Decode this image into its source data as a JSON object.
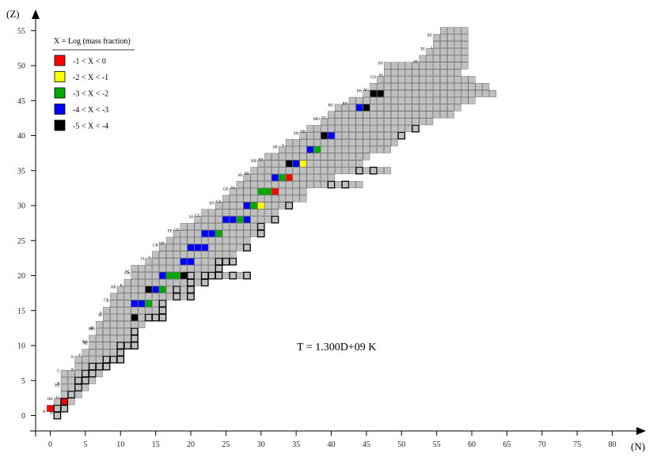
{
  "chart_data": {
    "type": "heatmap",
    "title": "",
    "xlabel": "(N)",
    "ylabel": "(Z)",
    "xlim": [
      -2,
      82
    ],
    "ylim": [
      -1,
      55
    ],
    "x_ticks": [
      0,
      5,
      10,
      15,
      20,
      25,
      30,
      35,
      40,
      45,
      50,
      55,
      60,
      65,
      70,
      75,
      80
    ],
    "y_ticks": [
      0,
      5,
      10,
      15,
      20,
      25,
      30,
      35,
      40,
      45,
      50,
      55
    ],
    "annotation": "T = 1.300D+09 K",
    "legend": {
      "title": "X = Log (mass fraction)",
      "entries": [
        {
          "label": "-1 < X < 0",
          "color": "#ff0000"
        },
        {
          "label": "-2 < X < -1",
          "color": "#ffff00"
        },
        {
          "label": "-3 < X < -2",
          "color": "#00aa00"
        },
        {
          "label": "-4 < X < -3",
          "color": "#0000ff"
        },
        {
          "label": "-5 < X < -4",
          "color": "#000000"
        }
      ]
    },
    "colors": {
      "network": "#c0c0c0",
      "stable_border": "#000000"
    },
    "rows": [
      {
        "z": 0,
        "n_min": 1,
        "n_max": 1
      },
      {
        "z": 1,
        "n_min": 0,
        "n_max": 2
      },
      {
        "z": 2,
        "n_min": 1,
        "n_max": 3
      },
      {
        "z": 3,
        "n_min": 2,
        "n_max": 4
      },
      {
        "z": 4,
        "n_min": 2,
        "n_max": 5
      },
      {
        "z": 5,
        "n_min": 2,
        "n_max": 6
      },
      {
        "z": 6,
        "n_min": 2,
        "n_max": 7
      },
      {
        "z": 7,
        "n_min": 4,
        "n_max": 8
      },
      {
        "z": 8,
        "n_min": 4,
        "n_max": 10
      },
      {
        "z": 9,
        "n_min": 5,
        "n_max": 10
      },
      {
        "z": 10,
        "n_min": 6,
        "n_max": 12
      },
      {
        "z": 11,
        "n_min": 6,
        "n_max": 12
      },
      {
        "z": 12,
        "n_min": 7,
        "n_max": 12
      },
      {
        "z": 13,
        "n_min": 7,
        "n_max": 13
      },
      {
        "z": 14,
        "n_min": 8,
        "n_max": 16
      },
      {
        "z": 15,
        "n_min": 8,
        "n_max": 16
      },
      {
        "z": 16,
        "n_min": 9,
        "n_max": 16
      },
      {
        "z": 17,
        "n_min": 9,
        "n_max": 20
      },
      {
        "z": 18,
        "n_min": 10,
        "n_max": 20
      },
      {
        "z": 19,
        "n_min": 11,
        "n_max": 22
      },
      {
        "z": 20,
        "n_min": 12,
        "n_max": 28
      },
      {
        "z": 21,
        "n_min": 12,
        "n_max": 24
      },
      {
        "z": 22,
        "n_min": 14,
        "n_max": 26
      },
      {
        "z": 23,
        "n_min": 15,
        "n_max": 26
      },
      {
        "z": 24,
        "n_min": 16,
        "n_max": 28
      },
      {
        "z": 25,
        "n_min": 17,
        "n_max": 28
      },
      {
        "z": 26,
        "n_min": 18,
        "n_max": 30
      },
      {
        "z": 27,
        "n_min": 19,
        "n_max": 30
      },
      {
        "z": 28,
        "n_min": 21,
        "n_max": 32
      },
      {
        "z": 29,
        "n_min": 22,
        "n_max": 32
      },
      {
        "z": 30,
        "n_min": 24,
        "n_max": 34
      },
      {
        "z": 31,
        "n_min": 25,
        "n_max": 36
      },
      {
        "z": 32,
        "n_min": 26,
        "n_max": 36
      },
      {
        "z": 33,
        "n_min": 27,
        "n_max": 44
      },
      {
        "z": 34,
        "n_min": 28,
        "n_max": 40
      },
      {
        "z": 35,
        "n_min": 29,
        "n_max": 48
      },
      {
        "z": 36,
        "n_min": 30,
        "n_max": 44
      },
      {
        "z": 37,
        "n_min": 31,
        "n_max": 45
      },
      {
        "z": 38,
        "n_min": 33,
        "n_max": 48
      },
      {
        "z": 39,
        "n_min": 34,
        "n_max": 49
      },
      {
        "z": 40,
        "n_min": 36,
        "n_max": 50
      },
      {
        "z": 41,
        "n_min": 37,
        "n_max": 52
      },
      {
        "z": 42,
        "n_min": 39,
        "n_max": 54
      },
      {
        "z": 43,
        "n_min": 40,
        "n_max": 57
      },
      {
        "z": 44,
        "n_min": 41,
        "n_max": 58
      },
      {
        "z": 45,
        "n_min": 43,
        "n_max": 60
      },
      {
        "z": 46,
        "n_min": 45,
        "n_max": 63
      },
      {
        "z": 47,
        "n_min": 46,
        "n_max": 62
      },
      {
        "z": 48,
        "n_min": 47,
        "n_max": 60
      },
      {
        "z": 49,
        "n_min": 48,
        "n_max": 58
      },
      {
        "z": 50,
        "n_min": 48,
        "n_max": 59
      },
      {
        "z": 51,
        "n_min": 53,
        "n_max": 59
      },
      {
        "z": 52,
        "n_min": 54,
        "n_max": 59
      },
      {
        "z": 53,
        "n_min": 55,
        "n_max": 59
      },
      {
        "z": 54,
        "n_min": 55,
        "n_max": 59
      },
      {
        "z": 55,
        "n_min": 56,
        "n_max": 59
      }
    ],
    "stable_cells": [
      [
        1,
        0
      ],
      [
        1,
        1
      ],
      [
        2,
        1
      ],
      [
        2,
        2
      ],
      [
        3,
        3
      ],
      [
        4,
        4
      ],
      [
        4,
        5
      ],
      [
        5,
        5
      ],
      [
        5,
        6
      ],
      [
        6,
        6
      ],
      [
        6,
        7
      ],
      [
        7,
        7
      ],
      [
        8,
        7
      ],
      [
        8,
        8
      ],
      [
        9,
        8
      ],
      [
        10,
        8
      ],
      [
        10,
        9
      ],
      [
        10,
        10
      ],
      [
        11,
        10
      ],
      [
        12,
        10
      ],
      [
        12,
        11
      ],
      [
        12,
        12
      ],
      [
        13,
        12
      ],
      [
        14,
        12
      ],
      [
        14,
        13
      ],
      [
        14,
        14
      ],
      [
        15,
        14
      ],
      [
        16,
        14
      ],
      [
        16,
        15
      ],
      [
        16,
        16
      ],
      [
        17,
        16
      ],
      [
        18,
        16
      ],
      [
        18,
        17
      ],
      [
        20,
        17
      ],
      [
        18,
        18
      ],
      [
        20,
        18
      ],
      [
        22,
        18
      ],
      [
        20,
        19
      ],
      [
        22,
        19
      ],
      [
        20,
        20
      ],
      [
        22,
        20
      ],
      [
        23,
        20
      ],
      [
        24,
        20
      ],
      [
        26,
        20
      ],
      [
        28,
        20
      ],
      [
        24,
        21
      ],
      [
        24,
        22
      ],
      [
        25,
        22
      ],
      [
        26,
        22
      ],
      [
        27,
        22
      ],
      [
        28,
        22
      ],
      [
        28,
        23
      ],
      [
        28,
        24
      ],
      [
        29,
        24
      ],
      [
        30,
        24
      ],
      [
        30,
        25
      ],
      [
        30,
        26
      ],
      [
        31,
        26
      ],
      [
        32,
        26
      ],
      [
        30,
        27
      ],
      [
        32,
        27
      ],
      [
        33,
        27
      ],
      [
        32,
        28
      ],
      [
        33,
        28
      ],
      [
        34,
        28
      ],
      [
        35,
        28
      ],
      [
        36,
        28
      ],
      [
        34,
        29
      ],
      [
        36,
        29
      ],
      [
        34,
        30
      ],
      [
        36,
        30
      ],
      [
        37,
        30
      ],
      [
        38,
        30
      ],
      [
        38,
        31
      ],
      [
        40,
        31
      ],
      [
        38,
        32
      ],
      [
        40,
        32
      ],
      [
        41,
        32
      ],
      [
        42,
        32
      ],
      [
        44,
        32
      ],
      [
        40,
        33
      ],
      [
        42,
        33
      ],
      [
        42,
        34
      ],
      [
        43,
        34
      ],
      [
        44,
        34
      ],
      [
        45,
        34
      ],
      [
        46,
        34
      ],
      [
        48,
        34
      ],
      [
        44,
        35
      ],
      [
        46,
        35
      ],
      [
        46,
        36
      ],
      [
        47,
        36
      ],
      [
        48,
        36
      ],
      [
        49,
        36
      ],
      [
        50,
        36
      ],
      [
        48,
        37
      ],
      [
        50,
        37
      ],
      [
        50,
        38
      ],
      [
        51,
        38
      ],
      [
        52,
        38
      ],
      [
        54,
        38
      ],
      [
        50,
        39
      ],
      [
        52,
        39
      ],
      [
        50,
        40
      ],
      [
        51,
        40
      ],
      [
        52,
        40
      ],
      [
        54,
        40
      ],
      [
        56,
        40
      ],
      [
        52,
        41
      ],
      [
        54,
        41
      ],
      [
        56,
        41
      ],
      [
        58,
        41
      ],
      [
        60,
        41
      ],
      [
        60,
        42
      ],
      [
        62,
        42
      ],
      [
        64,
        42
      ],
      [
        62,
        43
      ],
      [
        64,
        43
      ],
      [
        64,
        44
      ],
      [
        65,
        44
      ],
      [
        66,
        44
      ],
      [
        67,
        44
      ],
      [
        68,
        44
      ],
      [
        70,
        44
      ],
      [
        66,
        45
      ],
      [
        68,
        45
      ],
      [
        66,
        46
      ],
      [
        68,
        46
      ],
      [
        69,
        46
      ],
      [
        70,
        46
      ],
      [
        72,
        46
      ],
      [
        74,
        46
      ],
      [
        76,
        46
      ]
    ],
    "abundance_cells": [
      {
        "n": 0,
        "z": 1,
        "bin": 1
      },
      {
        "n": 2,
        "z": 2,
        "bin": 1
      },
      {
        "n": 12,
        "z": 14,
        "bin": 5
      },
      {
        "n": 12,
        "z": 16,
        "bin": 4
      },
      {
        "n": 13,
        "z": 16,
        "bin": 4
      },
      {
        "n": 14,
        "z": 16,
        "bin": 3
      },
      {
        "n": 14,
        "z": 18,
        "bin": 5
      },
      {
        "n": 15,
        "z": 18,
        "bin": 4
      },
      {
        "n": 16,
        "z": 18,
        "bin": 3
      },
      {
        "n": 16,
        "z": 20,
        "bin": 4
      },
      {
        "n": 17,
        "z": 20,
        "bin": 3
      },
      {
        "n": 18,
        "z": 20,
        "bin": 3
      },
      {
        "n": 19,
        "z": 20,
        "bin": 5
      },
      {
        "n": 19,
        "z": 22,
        "bin": 4
      },
      {
        "n": 20,
        "z": 22,
        "bin": 4
      },
      {
        "n": 20,
        "z": 24,
        "bin": 4
      },
      {
        "n": 21,
        "z": 24,
        "bin": 4
      },
      {
        "n": 22,
        "z": 24,
        "bin": 4
      },
      {
        "n": 22,
        "z": 26,
        "bin": 4
      },
      {
        "n": 23,
        "z": 26,
        "bin": 4
      },
      {
        "n": 24,
        "z": 26,
        "bin": 3
      },
      {
        "n": 25,
        "z": 28,
        "bin": 4
      },
      {
        "n": 26,
        "z": 28,
        "bin": 4
      },
      {
        "n": 27,
        "z": 28,
        "bin": 3
      },
      {
        "n": 28,
        "z": 28,
        "bin": 4
      },
      {
        "n": 28,
        "z": 30,
        "bin": 4
      },
      {
        "n": 29,
        "z": 30,
        "bin": 3
      },
      {
        "n": 30,
        "z": 30,
        "bin": 2
      },
      {
        "n": 30,
        "z": 32,
        "bin": 3
      },
      {
        "n": 31,
        "z": 32,
        "bin": 3
      },
      {
        "n": 32,
        "z": 32,
        "bin": 1
      },
      {
        "n": 32,
        "z": 34,
        "bin": 4
      },
      {
        "n": 33,
        "z": 34,
        "bin": 3
      },
      {
        "n": 34,
        "z": 34,
        "bin": 1
      },
      {
        "n": 34,
        "z": 36,
        "bin": 5
      },
      {
        "n": 35,
        "z": 36,
        "bin": 4
      },
      {
        "n": 36,
        "z": 36,
        "bin": 2
      },
      {
        "n": 37,
        "z": 38,
        "bin": 4
      },
      {
        "n": 38,
        "z": 38,
        "bin": 3
      },
      {
        "n": 39,
        "z": 40,
        "bin": 5
      },
      {
        "n": 40,
        "z": 40,
        "bin": 4
      },
      {
        "n": 44,
        "z": 44,
        "bin": 4
      },
      {
        "n": 45,
        "z": 44,
        "bin": 5
      },
      {
        "n": 46,
        "z": 46,
        "bin": 5
      },
      {
        "n": 47,
        "z": 46,
        "bin": 5
      }
    ],
    "element_labels": [
      {
        "z": 0,
        "text": "N"
      },
      {
        "z": 1,
        "text": "H"
      },
      {
        "z": 2,
        "text": "HE"
      },
      {
        "z": 3,
        "text": "LI"
      },
      {
        "z": 4,
        "text": "BE"
      },
      {
        "z": 5,
        "text": "B"
      },
      {
        "z": 6,
        "text": "C"
      },
      {
        "z": 7,
        "text": "N"
      },
      {
        "z": 8,
        "text": "O"
      },
      {
        "z": 9,
        "text": "F"
      },
      {
        "z": 10,
        "text": "NE"
      },
      {
        "z": 11,
        "text": "NA"
      },
      {
        "z": 12,
        "text": "MG"
      },
      {
        "z": 13,
        "text": "AL"
      },
      {
        "z": 14,
        "text": "SI"
      },
      {
        "z": 15,
        "text": "P"
      },
      {
        "z": 16,
        "text": "S"
      },
      {
        "z": 17,
        "text": "CL"
      },
      {
        "z": 18,
        "text": "AR"
      },
      {
        "z": 19,
        "text": "K"
      },
      {
        "z": 20,
        "text": "CA"
      },
      {
        "z": 21,
        "text": "SC"
      },
      {
        "z": 22,
        "text": "TI"
      },
      {
        "z": 23,
        "text": "V"
      },
      {
        "z": 24,
        "text": "CR"
      },
      {
        "z": 25,
        "text": "MN"
      },
      {
        "z": 26,
        "text": "FE"
      },
      {
        "z": 27,
        "text": "CO"
      },
      {
        "z": 28,
        "text": "NI"
      },
      {
        "z": 29,
        "text": "CU"
      },
      {
        "z": 30,
        "text": "ZN"
      },
      {
        "z": 31,
        "text": "GA"
      },
      {
        "z": 32,
        "text": "GE"
      },
      {
        "z": 33,
        "text": "AS"
      },
      {
        "z": 34,
        "text": "SE"
      },
      {
        "z": 35,
        "text": "BR"
      },
      {
        "z": 36,
        "text": "KR"
      },
      {
        "z": 37,
        "text": "RB"
      },
      {
        "z": 38,
        "text": "SR"
      },
      {
        "z": 39,
        "text": "Y"
      },
      {
        "z": 40,
        "text": "ZR"
      },
      {
        "z": 41,
        "text": "NB"
      },
      {
        "z": 42,
        "text": "MO"
      },
      {
        "z": 43,
        "text": "TC"
      },
      {
        "z": 44,
        "text": "RU"
      },
      {
        "z": 45,
        "text": "RH"
      },
      {
        "z": 46,
        "text": "PD"
      },
      {
        "z": 47,
        "text": "AG"
      },
      {
        "z": 48,
        "text": "CD"
      },
      {
        "z": 49,
        "text": "IN"
      },
      {
        "z": 50,
        "text": "SN"
      },
      {
        "z": 51,
        "text": "SB"
      },
      {
        "z": 52,
        "text": "TE"
      },
      {
        "z": 53,
        "text": "I"
      },
      {
        "z": 54,
        "text": "XE"
      }
    ]
  }
}
